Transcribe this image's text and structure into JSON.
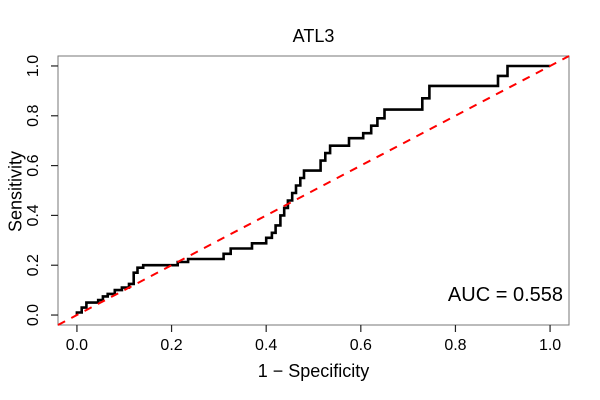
{
  "chart_data": {
    "type": "line",
    "subtype": "roc-step-curve",
    "title": "ATL3",
    "xlabel": "1 − Specificity",
    "ylabel": "Sensitivity",
    "annotation": "AUC = 0.558",
    "auc": 0.558,
    "xlim": [
      0,
      1
    ],
    "ylim": [
      0,
      1
    ],
    "axis_padding_fraction": 0.04,
    "grid": false,
    "legend": false,
    "x_ticks": [
      0.0,
      0.2,
      0.4,
      0.6,
      0.8,
      1.0
    ],
    "y_ticks": [
      0.0,
      0.2,
      0.4,
      0.6,
      0.8,
      1.0
    ],
    "x_tick_labels": [
      "0.0",
      "0.2",
      "0.4",
      "0.6",
      "0.8",
      "1.0"
    ],
    "y_tick_labels": [
      "0.0",
      "0.2",
      "0.4",
      "0.6",
      "0.8",
      "1.0"
    ],
    "colors": {
      "roc_curve": "#000000",
      "reference_line": "#ff0000",
      "box": "#777777",
      "ticks": "#222222"
    },
    "series": [
      {
        "name": "ROC curve",
        "style": "solid-step",
        "color": "#000000",
        "points": [
          [
            0.0,
            0.0
          ],
          [
            0.0,
            0.01
          ],
          [
            0.01,
            0.01
          ],
          [
            0.01,
            0.03
          ],
          [
            0.02,
            0.03
          ],
          [
            0.02,
            0.05
          ],
          [
            0.045,
            0.05
          ],
          [
            0.045,
            0.06
          ],
          [
            0.055,
            0.06
          ],
          [
            0.055,
            0.075
          ],
          [
            0.065,
            0.075
          ],
          [
            0.065,
            0.085
          ],
          [
            0.08,
            0.085
          ],
          [
            0.08,
            0.1
          ],
          [
            0.095,
            0.1
          ],
          [
            0.095,
            0.11
          ],
          [
            0.11,
            0.11
          ],
          [
            0.11,
            0.125
          ],
          [
            0.12,
            0.125
          ],
          [
            0.12,
            0.17
          ],
          [
            0.128,
            0.17
          ],
          [
            0.128,
            0.19
          ],
          [
            0.14,
            0.19
          ],
          [
            0.14,
            0.2
          ],
          [
            0.213,
            0.2
          ],
          [
            0.213,
            0.213
          ],
          [
            0.235,
            0.213
          ],
          [
            0.235,
            0.225
          ],
          [
            0.31,
            0.225
          ],
          [
            0.31,
            0.246
          ],
          [
            0.325,
            0.246
          ],
          [
            0.325,
            0.267
          ],
          [
            0.37,
            0.267
          ],
          [
            0.37,
            0.288
          ],
          [
            0.4,
            0.288
          ],
          [
            0.4,
            0.31
          ],
          [
            0.412,
            0.31
          ],
          [
            0.412,
            0.33
          ],
          [
            0.42,
            0.33
          ],
          [
            0.42,
            0.36
          ],
          [
            0.43,
            0.36
          ],
          [
            0.43,
            0.4
          ],
          [
            0.438,
            0.4
          ],
          [
            0.438,
            0.43
          ],
          [
            0.446,
            0.43
          ],
          [
            0.446,
            0.46
          ],
          [
            0.455,
            0.46
          ],
          [
            0.455,
            0.49
          ],
          [
            0.463,
            0.49
          ],
          [
            0.463,
            0.52
          ],
          [
            0.472,
            0.52
          ],
          [
            0.472,
            0.55
          ],
          [
            0.48,
            0.55
          ],
          [
            0.48,
            0.58
          ],
          [
            0.515,
            0.58
          ],
          [
            0.515,
            0.62
          ],
          [
            0.525,
            0.62
          ],
          [
            0.525,
            0.65
          ],
          [
            0.535,
            0.65
          ],
          [
            0.535,
            0.68
          ],
          [
            0.575,
            0.68
          ],
          [
            0.575,
            0.71
          ],
          [
            0.605,
            0.71
          ],
          [
            0.605,
            0.73
          ],
          [
            0.622,
            0.73
          ],
          [
            0.622,
            0.76
          ],
          [
            0.635,
            0.76
          ],
          [
            0.635,
            0.79
          ],
          [
            0.65,
            0.79
          ],
          [
            0.65,
            0.825
          ],
          [
            0.73,
            0.825
          ],
          [
            0.73,
            0.87
          ],
          [
            0.745,
            0.87
          ],
          [
            0.745,
            0.92
          ],
          [
            0.89,
            0.92
          ],
          [
            0.89,
            0.96
          ],
          [
            0.91,
            0.96
          ],
          [
            0.91,
            1.0
          ],
          [
            1.0,
            1.0
          ]
        ]
      },
      {
        "name": "Reference diagonal",
        "style": "dashed",
        "color": "#ff0000",
        "points": [
          [
            0.0,
            0.0
          ],
          [
            1.0,
            1.0
          ]
        ]
      }
    ]
  }
}
